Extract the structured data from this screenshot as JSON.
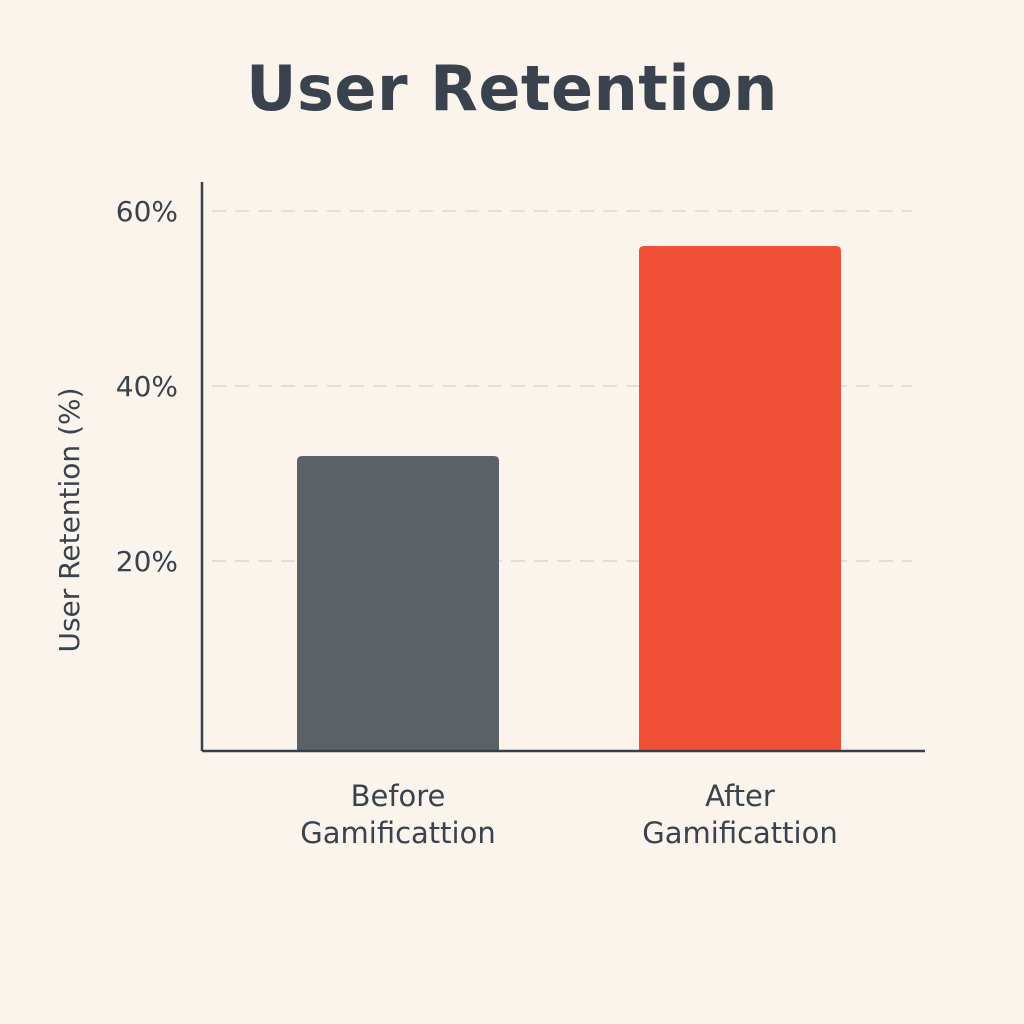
{
  "chart_data": {
    "type": "bar",
    "title": "User Retention",
    "xlabel": "",
    "ylabel": "User Retention (%)",
    "categories": [
      [
        "Before",
        "Gamificattion"
      ],
      [
        "After",
        "Gamificattion"
      ]
    ],
    "values": [
      32,
      56
    ],
    "colors": [
      "#5b6167",
      "#f05038"
    ],
    "ylim": [
      0,
      60
    ],
    "yticks": [
      20,
      40,
      60
    ],
    "ytick_labels": [
      "20%",
      "40%",
      "60%"
    ],
    "grid": true,
    "legend": "none"
  }
}
